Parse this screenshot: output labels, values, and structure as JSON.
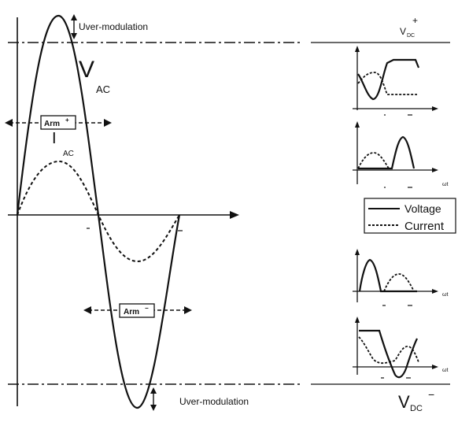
{
  "labels": {
    "overmod_top": "Uver-modulation",
    "overmod_bottom": "Uver-modulation",
    "vac_main": "V",
    "vac_sub": "AC",
    "iac_main": "I",
    "iac_sub": "AC",
    "arm_top": "Arm",
    "arm_top_sup": "+",
    "arm_bottom": "Arm",
    "arm_bottom_sup": "−",
    "vdc_plus_main": "V",
    "vdc_plus_sub": "DC",
    "vdc_plus_sup": "+",
    "vdc_minus_main": "V",
    "vdc_minus_sub": "DC",
    "vdc_minus_sup": "−",
    "axis_wt": "ωt"
  },
  "legend": {
    "voltage": "Voltage",
    "current": "Current"
  },
  "colors": {
    "line": "#111111",
    "background": "#ffffff"
  }
}
